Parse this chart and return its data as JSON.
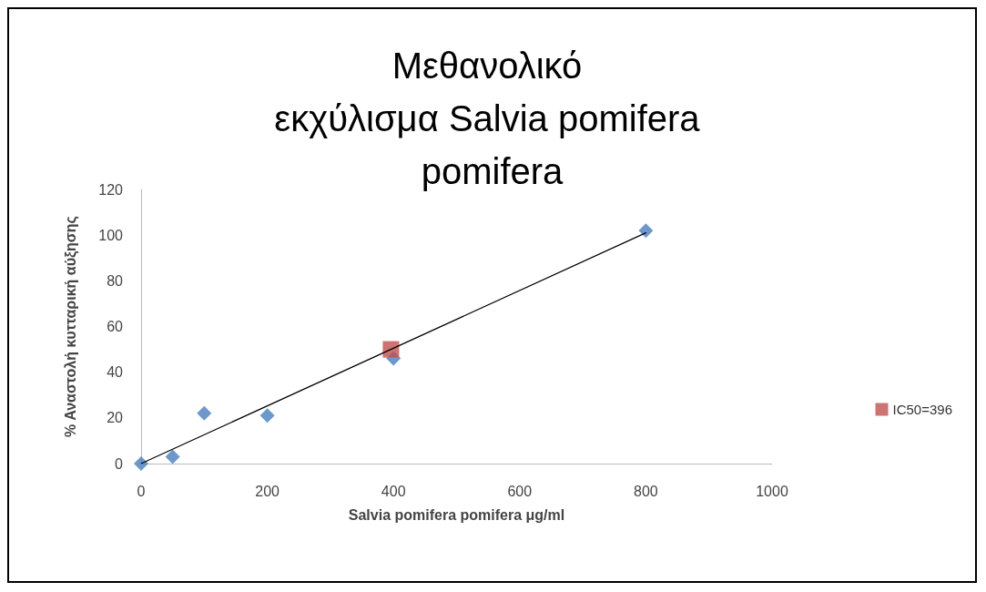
{
  "chart_data": {
    "type": "scatter",
    "title": "Μεθανολικό εκχύλισμα Salvia pomifera pomifera",
    "xlabel": "Salvia pomifera pomifera μg/ml",
    "ylabel": "% Αναστολή κυτταρική αύξησης",
    "xlim": [
      0,
      1000
    ],
    "xticks": [
      0,
      200,
      400,
      600,
      800,
      1000
    ],
    "ylim": [
      0,
      120
    ],
    "yticks": [
      0,
      20,
      40,
      60,
      80,
      100,
      120
    ],
    "grid": false,
    "legend": "right",
    "marker": "diamond",
    "series": [
      {
        "type": "line",
        "x": [
          0,
          800
        ],
        "values": [
          0,
          101
        ],
        "color": "#000000",
        "marker": "none"
      },
      {
        "x": [
          0,
          50,
          100,
          200,
          400,
          800
        ],
        "values": [
          0,
          3,
          22,
          21,
          46,
          102
        ],
        "color": "#4a7ebb"
      },
      {
        "name": "IC50=396",
        "x": [
          396
        ],
        "values": [
          50
        ],
        "color": "#c0504d",
        "marker": "square"
      }
    ]
  }
}
